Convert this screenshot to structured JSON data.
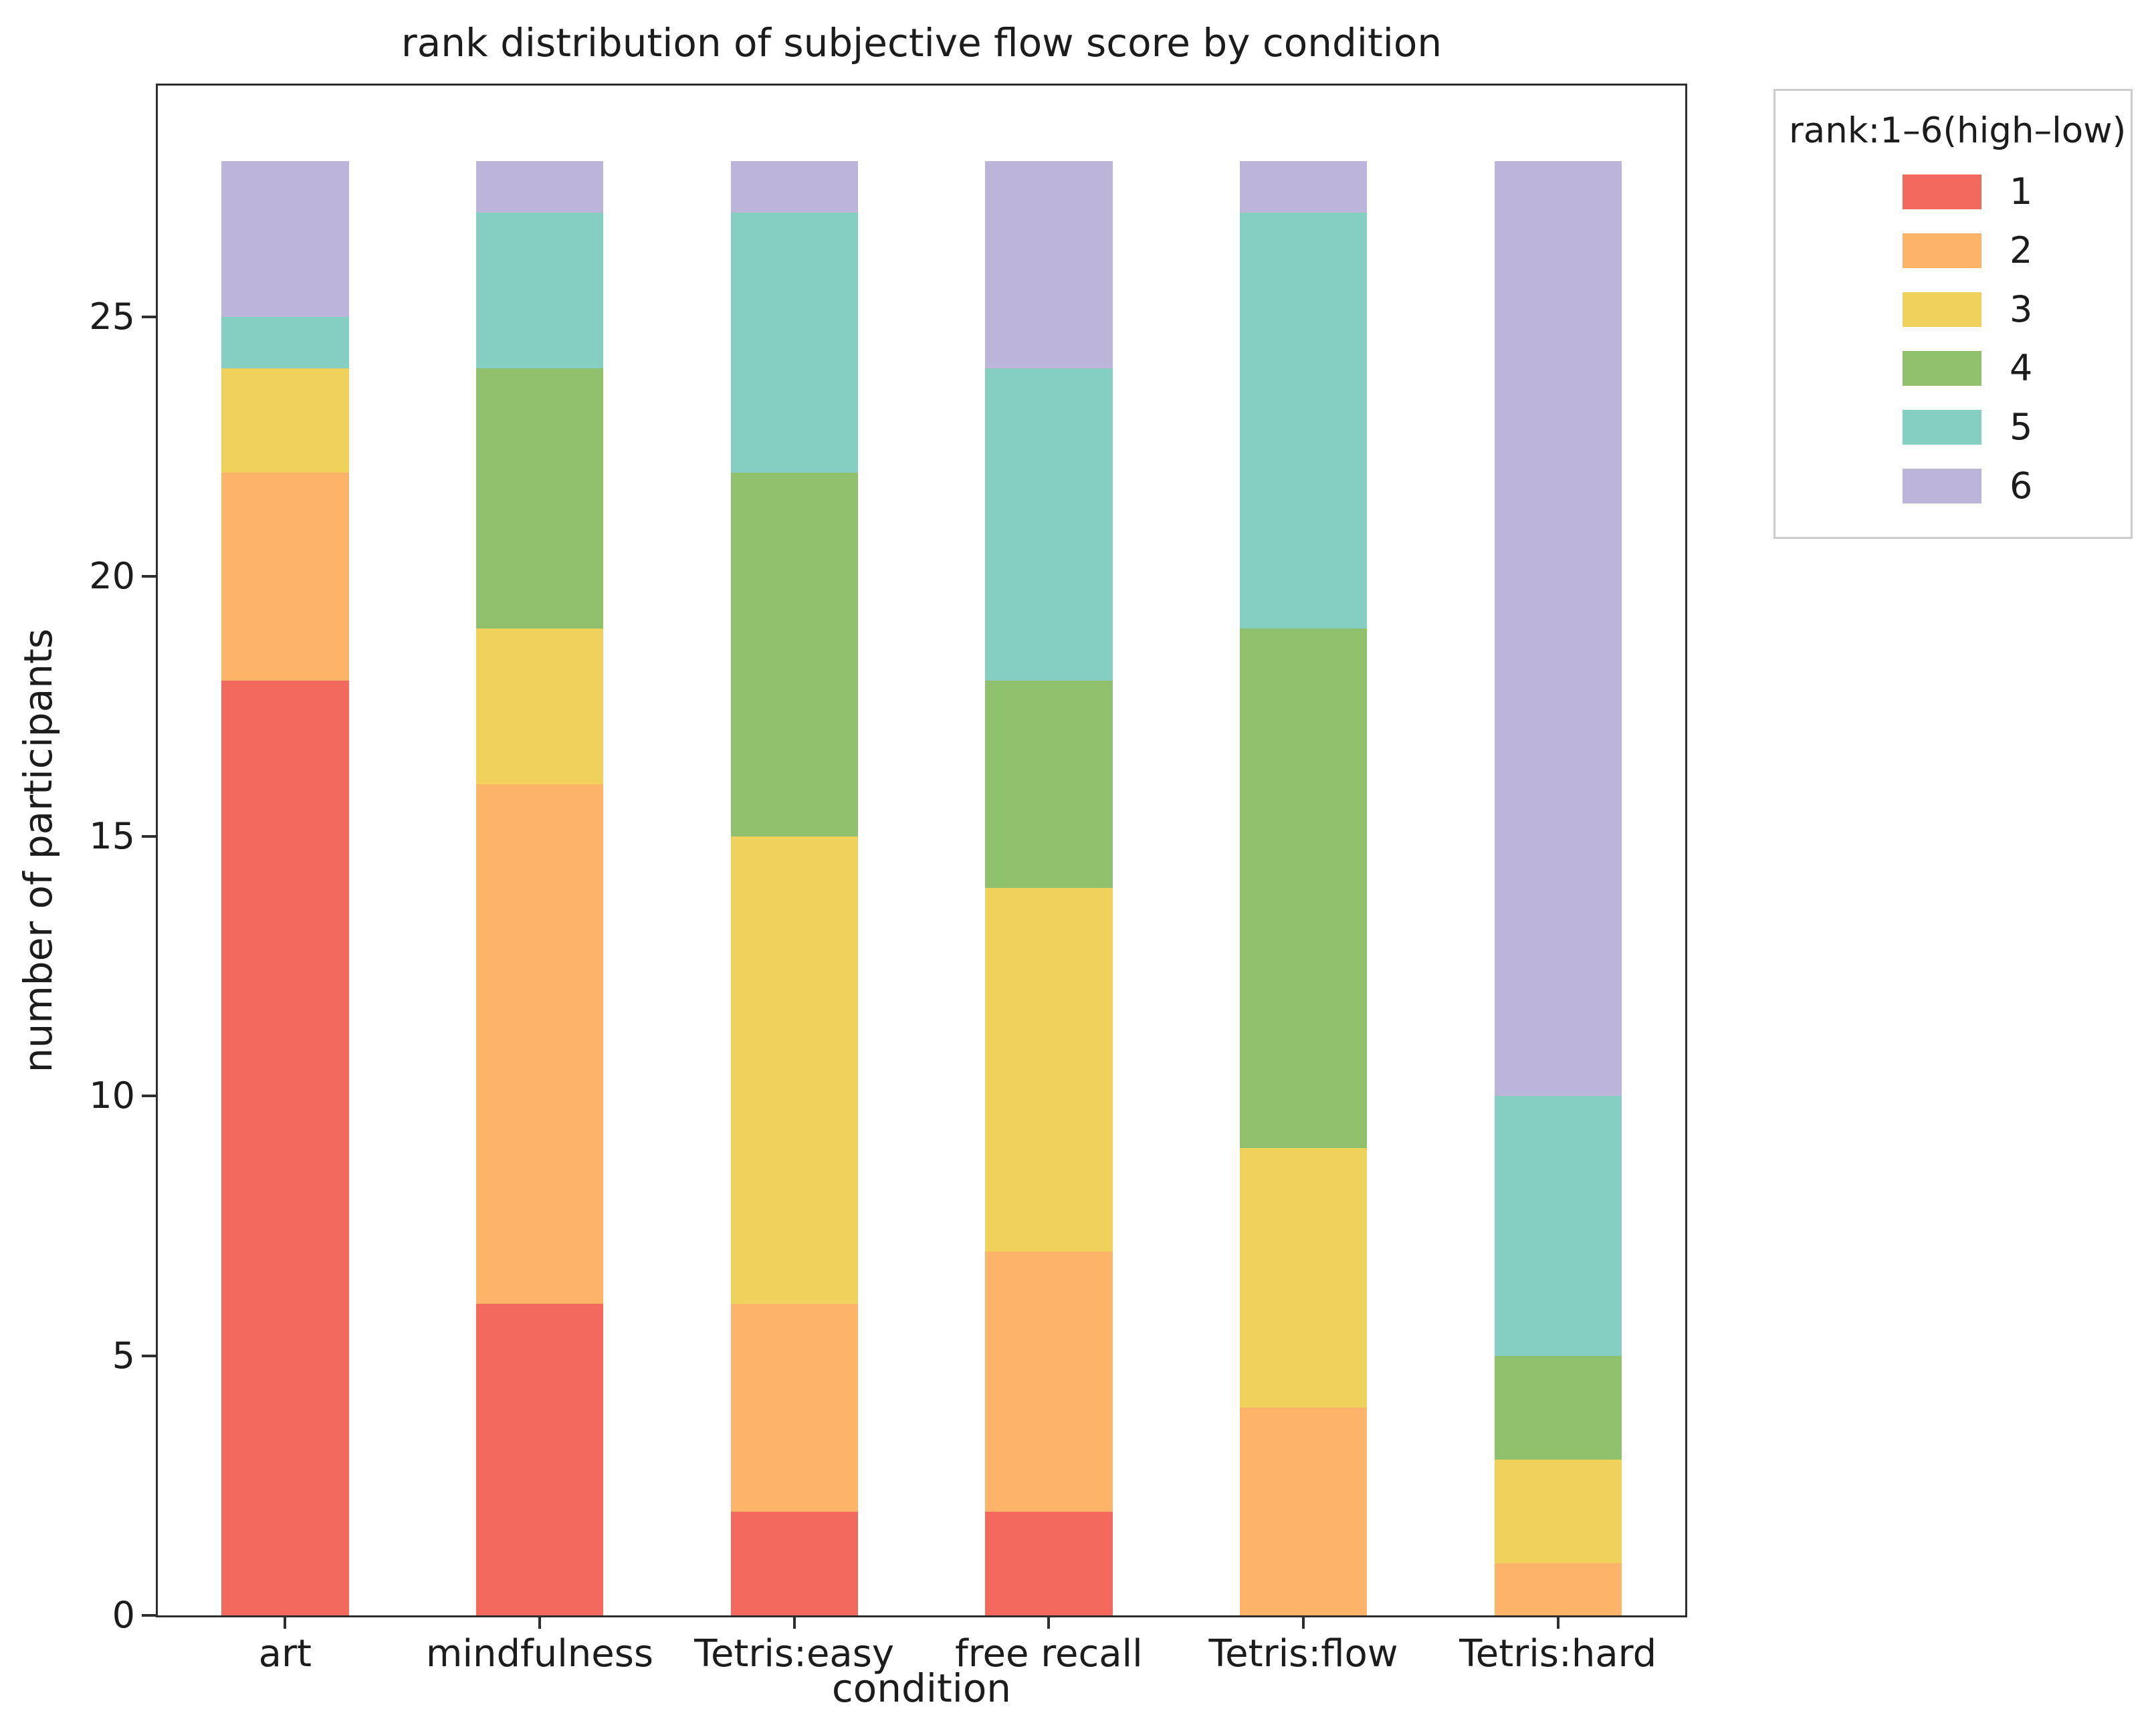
{
  "figure": {
    "title": "rank distribution of subjective flow score by condition",
    "xlabel": "condition",
    "ylabel": "number of participants"
  },
  "legend": {
    "title": "rank:1–6(high–low)",
    "entries": [
      {
        "label": "1",
        "color": "#f4695e"
      },
      {
        "label": "2",
        "color": "#fcb469"
      },
      {
        "label": "3",
        "color": "#f0d15c"
      },
      {
        "label": "4",
        "color": "#8fc06c"
      },
      {
        "label": "5",
        "color": "#84cfc2"
      },
      {
        "label": "6",
        "color": "#bcb5d9"
      }
    ]
  },
  "chart_data": {
    "type": "bar",
    "stacked": true,
    "title": "rank distribution of subjective flow score by condition",
    "xlabel": "condition",
    "ylabel": "number of participants",
    "categories": [
      "art",
      "mindfulness",
      "Tetris:easy",
      "free recall",
      "Tetris:flow",
      "Tetris:hard"
    ],
    "series": [
      {
        "name": "1",
        "color": "#f4695e",
        "values": [
          18,
          6,
          2,
          2,
          0,
          0
        ]
      },
      {
        "name": "2",
        "color": "#fcb469",
        "values": [
          4,
          10,
          4,
          5,
          4,
          1
        ]
      },
      {
        "name": "3",
        "color": "#f0d15c",
        "values": [
          2,
          3,
          9,
          7,
          5,
          2
        ]
      },
      {
        "name": "4",
        "color": "#8fc06c",
        "values": [
          0,
          5,
          7,
          4,
          10,
          2
        ]
      },
      {
        "name": "5",
        "color": "#84cfc2",
        "values": [
          1,
          3,
          5,
          6,
          8,
          5
        ]
      },
      {
        "name": "6",
        "color": "#bcb5d9",
        "values": [
          3,
          1,
          1,
          4,
          1,
          18
        ]
      }
    ],
    "bar_total_per_category": 28,
    "yticks": [
      0,
      5,
      10,
      15,
      20,
      25
    ],
    "ylim": [
      0,
      29.45
    ],
    "grid": false,
    "legend_title": "rank:1–6(high–low)",
    "legend_position": "outside upper right"
  }
}
